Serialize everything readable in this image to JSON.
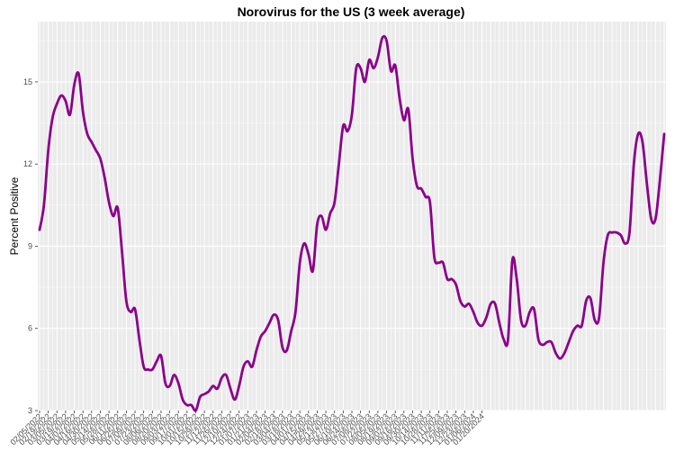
{
  "chart_data": {
    "type": "line",
    "title": "Norovirus for the US (3 week average)",
    "xlabel": "",
    "ylabel": "Percent Positive",
    "ylim": [
      3,
      17.2
    ],
    "yticks": [
      3,
      6,
      9,
      12,
      15
    ],
    "grid": true,
    "line_color": "#8B008B",
    "panel_color": "#EBEBEB",
    "x_tick_labels": [
      "02/05/2022",
      "02/19/2022",
      "03/05/2022",
      "03/19/2022",
      "04/02/2022",
      "04/16/2022",
      "04/30/2022",
      "05/14/2022",
      "05/28/2022",
      "06/11/2022",
      "06/25/2022",
      "07/09/2022",
      "07/23/2022",
      "08/06/2022",
      "08/20/2022",
      "09/03/2022",
      "09/17/2022",
      "10/01/2022",
      "10/15/2022",
      "10/29/2022",
      "11/12/2022",
      "11/26/2022",
      "12/10/2022",
      "12/24/2022",
      "01/07/2023",
      "01/21/2023",
      "02/04/2023",
      "02/18/2023",
      "03/04/2023",
      "03/18/2023",
      "04/01/2023",
      "04/15/2023",
      "04/29/2023",
      "05/13/2023",
      "05/27/2023",
      "06/10/2023",
      "06/24/2023",
      "07/08/2023",
      "07/22/2023",
      "08/05/2023",
      "08/19/2023",
      "09/02/2023",
      "09/16/2023",
      "09/30/2023",
      "10/14/2023",
      "10/28/2023",
      "11/11/2023",
      "11/25/2023",
      "12/09/2023",
      "12/23/2023",
      "01/06/2024",
      "01/20/2024"
    ],
    "series": [
      {
        "name": "",
        "values": [
          9.6,
          10.5,
          12.5,
          13.7,
          14.2,
          14.5,
          14.3,
          13.8,
          14.9,
          15.3,
          13.9,
          13.1,
          12.8,
          12.5,
          12.2,
          11.5,
          10.6,
          10.1,
          10.4,
          8.8,
          7.0,
          6.6,
          6.7,
          5.6,
          4.6,
          4.5,
          4.5,
          4.8,
          5.0,
          4.0,
          3.9,
          4.3,
          4.0,
          3.4,
          3.2,
          3.2,
          3.0,
          3.5,
          3.6,
          3.7,
          3.9,
          3.8,
          4.2,
          4.3,
          3.8,
          3.4,
          3.9,
          4.6,
          4.8,
          4.6,
          5.2,
          5.7,
          5.9,
          6.2,
          6.5,
          6.3,
          5.3,
          5.2,
          5.9,
          6.6,
          8.4,
          9.1,
          8.7,
          8.1,
          9.8,
          10.1,
          9.6,
          10.2,
          10.6,
          12.0,
          13.4,
          13.2,
          13.8,
          15.5,
          15.5,
          15.0,
          15.8,
          15.5,
          15.9,
          16.6,
          16.5,
          15.4,
          15.6,
          14.4,
          13.6,
          14.0,
          12.2,
          11.2,
          11.1,
          10.8,
          10.6,
          8.6,
          8.4,
          8.4,
          7.8,
          7.8,
          7.6,
          7.0,
          6.8,
          6.9,
          6.6,
          6.2,
          6.1,
          6.4,
          6.9,
          6.9,
          6.2,
          5.6,
          5.6,
          8.5,
          7.8,
          6.3,
          6.1,
          6.6,
          6.7,
          5.6,
          5.4,
          5.5,
          5.5,
          5.1,
          4.9,
          5.1,
          5.5,
          5.9,
          6.1,
          6.1,
          7.0,
          7.1,
          6.3,
          6.4,
          8.4,
          9.4,
          9.5,
          9.5,
          9.4,
          9.1,
          9.5,
          12.0,
          13.1,
          12.8,
          11.3,
          10.0,
          10.0,
          11.4,
          13.1
        ]
      }
    ]
  }
}
